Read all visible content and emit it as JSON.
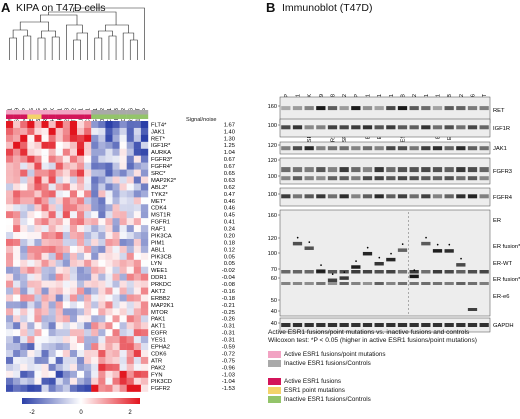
{
  "panel_a": {
    "letter": "A",
    "title": "KIPA on T47D cells",
    "columns": [
      "ESR1-e6>YAP1",
      "ESR1-e6>SOX9",
      "ESR1-e6>LPP",
      "ESR1-Y537S",
      "ESR1-D538G",
      "ESR1-e6>TNRC6B",
      "ESR1-e6>PCMH11X",
      "ESR1-e6>GRIP1",
      "ESR1-e6>ARNT2-e18",
      "ESR1-e6>ARNT2-e2",
      "ESR1-e6>CLINT1",
      "ESR1-e6>NCOA1",
      "ESR1-e6>GYG1",
      "ESR1-e6>DAB2",
      "ESR1-e6>PCMT1",
      "ESR1-e6>ARID1B",
      "ESR1-e6>TCF12",
      "ESR1-e6",
      "ESR1-WT",
      "YFP"
    ],
    "signal_header": "Signal/noise",
    "genes": [
      "FLT4",
      "JAK1",
      "RET",
      "IGF1R",
      "AURKA",
      "FGFR3",
      "FGFR4",
      "SRC",
      "MAP2K2",
      "ABL2",
      "TYK2",
      "MET",
      "CDK4",
      "MST1R",
      "FGFR1",
      "RAF1",
      "PIK3CA",
      "PIM1",
      "ABL1",
      "PIK3CB",
      "LYN",
      "WEE1",
      "DDR1",
      "PRKDC",
      "AKT2",
      "ERBB2",
      "MAP2K1",
      "MTOR",
      "PAK1",
      "AKT1",
      "EGFR",
      "YES1",
      "EPHA2",
      "CDK6",
      "ATR",
      "PAK2",
      "FYN",
      "PIK3CD",
      "FGFR2"
    ],
    "starred": [
      true,
      false,
      true,
      true,
      false,
      true,
      true,
      true,
      true,
      true,
      true,
      true,
      false,
      false,
      false,
      false,
      false,
      false,
      false,
      false,
      false,
      false,
      false,
      false,
      false,
      false,
      false,
      false,
      false,
      false,
      false,
      false,
      false,
      false,
      false,
      false,
      false,
      false,
      false
    ],
    "signal": [
      "1.67",
      "1.40",
      "1.30",
      "1.25",
      "1.04",
      "0.67",
      "0.67",
      "0.65",
      "0.63",
      "0.62",
      "0.47",
      "0.46",
      "0.46",
      "0.45",
      "0.41",
      "0.24",
      "0.20",
      "0.18",
      "0.12",
      "0.05",
      "0.05",
      "-0.02",
      "-0.04",
      "-0.08",
      "-0.16",
      "-0.18",
      "-0.21",
      "-0.25",
      "-0.26",
      "-0.31",
      "-0.31",
      "-0.31",
      "-0.59",
      "-0.72",
      "-0.75",
      "-0.96",
      "-1.03",
      "-1.04",
      "-1.53"
    ],
    "colorbar": {
      "ticks": [
        "-2",
        "0",
        "2"
      ],
      "low": "#2b3fa8",
      "mid": "#ffffff",
      "high": "#e2141e"
    },
    "group_colors": {
      "pink": "#f2a3c3",
      "grey": "#a9a9a9",
      "red": "#d3145a",
      "yellow": "#f3d36a",
      "green": "#93c46a"
    }
  },
  "panel_b": {
    "letter": "B",
    "title": "Immunoblot (T47D)",
    "lanes": [
      "YFP",
      "ESR1-e6>YAP1",
      "ESR1-e6>PCMH11X",
      "ESR1-e6>SOX9",
      "ESR1-e6>ARNT2-e18",
      "ESR1-e6>ARNT2-e2",
      "ESR1-e6>LPP",
      "ESR1-e6>NCOA1",
      "ESR1-e6>CLINT1",
      "ESR1-e6>GRIP1",
      "ESR1-e6>TNRC6B",
      "ESR1-e6>DAB2",
      "ESR1-e6>GYG1",
      "ESR1-e6>PCMT1",
      "ESR1-e6>ARID1B",
      "ESR1-e6>TCF12",
      "ESR1-e6",
      "ESR1-WT"
    ],
    "blots": [
      {
        "label": "RET",
        "mw": [
          "160"
        ]
      },
      {
        "label": "IGF1R",
        "mw": [
          "100"
        ]
      },
      {
        "label": "JAK1",
        "mw": [
          "120"
        ]
      },
      {
        "label": "FGFR3",
        "mw": [
          "120",
          "100"
        ]
      },
      {
        "label": "FGFR4",
        "mw": [
          "100"
        ]
      },
      {
        "label": "ER",
        "mw": [
          "160",
          "120",
          "100",
          "70",
          "60",
          "50",
          "40"
        ],
        "bands": [
          "ER fusion*",
          "ER-WT",
          "ER fusion*",
          "ER-e6"
        ]
      },
      {
        "label": "GAPDH",
        "mw": [
          "40"
        ]
      }
    ]
  },
  "legend": {
    "heading": "Active ESR1 fusions/point mutations vs. inactive fusions and controls",
    "test": "Wilcoxon test: *P < 0.05 (higher in active ESR1 fusions/point mutations)",
    "items_top": [
      "Active ESR1 fusions/point mutations",
      "Inactive ESR1 fusions/Controls"
    ],
    "items_bottom": [
      "Active ESR1 fusions",
      "ESR1 point mutations",
      "Inactive ESR1 fusions/Controls"
    ]
  }
}
